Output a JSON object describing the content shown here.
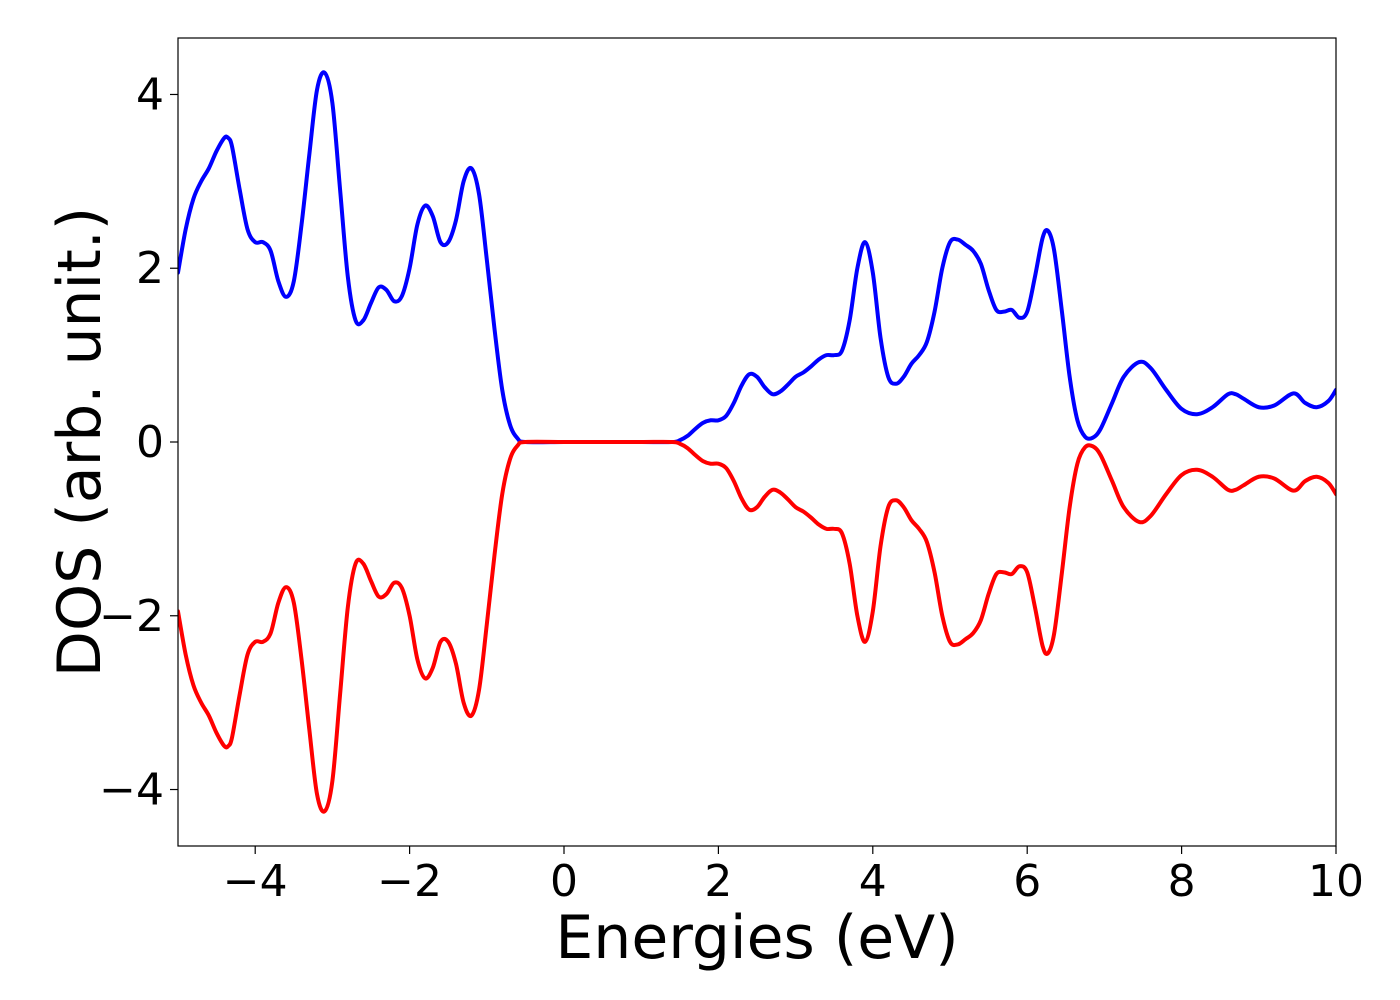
{
  "chart_data": {
    "type": "line",
    "title": "",
    "xlabel": "Energies (eV)",
    "ylabel": "DOS (arb. unit.)",
    "xlim": [
      -5,
      10
    ],
    "ylim": [
      -4.65,
      4.65
    ],
    "xticks": [
      {
        "value": -4,
        "label": "−4"
      },
      {
        "value": -2,
        "label": "−2"
      },
      {
        "value": 0,
        "label": "0"
      },
      {
        "value": 2,
        "label": "2"
      },
      {
        "value": 4,
        "label": "4"
      },
      {
        "value": 6,
        "label": "6"
      },
      {
        "value": 8,
        "label": "8"
      },
      {
        "value": 10,
        "label": "10"
      }
    ],
    "yticks": [
      {
        "value": -4,
        "label": "−4"
      },
      {
        "value": -2,
        "label": "−2"
      },
      {
        "value": 0,
        "label": "0"
      },
      {
        "value": 2,
        "label": "2"
      },
      {
        "value": 4,
        "label": "4"
      }
    ],
    "grid": false,
    "legend": "none",
    "series": [
      {
        "color": "#0000ff",
        "points": [
          [
            -5.0,
            1.95
          ],
          [
            -4.9,
            2.45
          ],
          [
            -4.8,
            2.8
          ],
          [
            -4.7,
            3.0
          ],
          [
            -4.6,
            3.15
          ],
          [
            -4.5,
            3.35
          ],
          [
            -4.4,
            3.5
          ],
          [
            -4.35,
            3.5
          ],
          [
            -4.3,
            3.4
          ],
          [
            -4.2,
            2.9
          ],
          [
            -4.1,
            2.45
          ],
          [
            -4.0,
            2.3
          ],
          [
            -3.9,
            2.3
          ],
          [
            -3.8,
            2.2
          ],
          [
            -3.7,
            1.85
          ],
          [
            -3.6,
            1.67
          ],
          [
            -3.5,
            1.85
          ],
          [
            -3.4,
            2.5
          ],
          [
            -3.3,
            3.3
          ],
          [
            -3.2,
            4.05
          ],
          [
            -3.1,
            4.25
          ],
          [
            -3.0,
            3.9
          ],
          [
            -2.9,
            2.9
          ],
          [
            -2.8,
            1.9
          ],
          [
            -2.7,
            1.4
          ],
          [
            -2.6,
            1.4
          ],
          [
            -2.5,
            1.6
          ],
          [
            -2.4,
            1.78
          ],
          [
            -2.3,
            1.75
          ],
          [
            -2.2,
            1.62
          ],
          [
            -2.1,
            1.68
          ],
          [
            -2.0,
            2.0
          ],
          [
            -1.9,
            2.5
          ],
          [
            -1.8,
            2.72
          ],
          [
            -1.7,
            2.6
          ],
          [
            -1.6,
            2.3
          ],
          [
            -1.5,
            2.3
          ],
          [
            -1.4,
            2.55
          ],
          [
            -1.3,
            3.0
          ],
          [
            -1.2,
            3.15
          ],
          [
            -1.1,
            2.85
          ],
          [
            -1.0,
            2.1
          ],
          [
            -0.9,
            1.3
          ],
          [
            -0.8,
            0.6
          ],
          [
            -0.7,
            0.2
          ],
          [
            -0.6,
            0.04
          ],
          [
            -0.5,
            0.0
          ],
          [
            0.0,
            0.0
          ],
          [
            0.5,
            0.0
          ],
          [
            1.0,
            0.0
          ],
          [
            1.4,
            0.0
          ],
          [
            1.5,
            0.02
          ],
          [
            1.6,
            0.07
          ],
          [
            1.7,
            0.15
          ],
          [
            1.8,
            0.22
          ],
          [
            1.9,
            0.25
          ],
          [
            2.0,
            0.25
          ],
          [
            2.1,
            0.3
          ],
          [
            2.2,
            0.45
          ],
          [
            2.3,
            0.65
          ],
          [
            2.4,
            0.78
          ],
          [
            2.5,
            0.75
          ],
          [
            2.6,
            0.63
          ],
          [
            2.7,
            0.55
          ],
          [
            2.8,
            0.58
          ],
          [
            2.9,
            0.66
          ],
          [
            3.0,
            0.75
          ],
          [
            3.1,
            0.8
          ],
          [
            3.2,
            0.87
          ],
          [
            3.3,
            0.95
          ],
          [
            3.4,
            1.0
          ],
          [
            3.5,
            1.0
          ],
          [
            3.6,
            1.05
          ],
          [
            3.7,
            1.4
          ],
          [
            3.8,
            2.0
          ],
          [
            3.9,
            2.3
          ],
          [
            4.0,
            1.95
          ],
          [
            4.1,
            1.2
          ],
          [
            4.2,
            0.75
          ],
          [
            4.3,
            0.67
          ],
          [
            4.4,
            0.75
          ],
          [
            4.5,
            0.9
          ],
          [
            4.6,
            1.0
          ],
          [
            4.7,
            1.15
          ],
          [
            4.8,
            1.5
          ],
          [
            4.9,
            2.0
          ],
          [
            5.0,
            2.3
          ],
          [
            5.1,
            2.33
          ],
          [
            5.2,
            2.27
          ],
          [
            5.3,
            2.2
          ],
          [
            5.4,
            2.05
          ],
          [
            5.5,
            1.75
          ],
          [
            5.6,
            1.52
          ],
          [
            5.7,
            1.5
          ],
          [
            5.8,
            1.52
          ],
          [
            5.9,
            1.43
          ],
          [
            6.0,
            1.5
          ],
          [
            6.1,
            1.9
          ],
          [
            6.2,
            2.35
          ],
          [
            6.27,
            2.43
          ],
          [
            6.35,
            2.2
          ],
          [
            6.45,
            1.5
          ],
          [
            6.55,
            0.75
          ],
          [
            6.65,
            0.25
          ],
          [
            6.75,
            0.06
          ],
          [
            6.85,
            0.05
          ],
          [
            6.95,
            0.15
          ],
          [
            7.1,
            0.45
          ],
          [
            7.25,
            0.75
          ],
          [
            7.45,
            0.92
          ],
          [
            7.6,
            0.85
          ],
          [
            7.8,
            0.6
          ],
          [
            8.0,
            0.38
          ],
          [
            8.2,
            0.32
          ],
          [
            8.4,
            0.4
          ],
          [
            8.6,
            0.55
          ],
          [
            8.7,
            0.55
          ],
          [
            8.8,
            0.5
          ],
          [
            9.0,
            0.4
          ],
          [
            9.2,
            0.42
          ],
          [
            9.45,
            0.56
          ],
          [
            9.6,
            0.45
          ],
          [
            9.75,
            0.4
          ],
          [
            9.9,
            0.47
          ],
          [
            10.0,
            0.6
          ]
        ]
      },
      {
        "color": "#ff0000",
        "points": [
          [
            -5.0,
            -1.95
          ],
          [
            -4.9,
            -2.45
          ],
          [
            -4.8,
            -2.8
          ],
          [
            -4.7,
            -3.0
          ],
          [
            -4.6,
            -3.15
          ],
          [
            -4.5,
            -3.35
          ],
          [
            -4.4,
            -3.5
          ],
          [
            -4.35,
            -3.5
          ],
          [
            -4.3,
            -3.4
          ],
          [
            -4.2,
            -2.9
          ],
          [
            -4.1,
            -2.45
          ],
          [
            -4.0,
            -2.3
          ],
          [
            -3.9,
            -2.3
          ],
          [
            -3.8,
            -2.2
          ],
          [
            -3.7,
            -1.85
          ],
          [
            -3.6,
            -1.67
          ],
          [
            -3.5,
            -1.85
          ],
          [
            -3.4,
            -2.5
          ],
          [
            -3.3,
            -3.3
          ],
          [
            -3.2,
            -4.05
          ],
          [
            -3.1,
            -4.25
          ],
          [
            -3.0,
            -3.9
          ],
          [
            -2.9,
            -2.9
          ],
          [
            -2.8,
            -1.9
          ],
          [
            -2.7,
            -1.4
          ],
          [
            -2.6,
            -1.4
          ],
          [
            -2.5,
            -1.6
          ],
          [
            -2.4,
            -1.78
          ],
          [
            -2.3,
            -1.75
          ],
          [
            -2.2,
            -1.62
          ],
          [
            -2.1,
            -1.68
          ],
          [
            -2.0,
            -2.0
          ],
          [
            -1.9,
            -2.5
          ],
          [
            -1.8,
            -2.72
          ],
          [
            -1.7,
            -2.6
          ],
          [
            -1.6,
            -2.3
          ],
          [
            -1.5,
            -2.3
          ],
          [
            -1.4,
            -2.55
          ],
          [
            -1.3,
            -3.0
          ],
          [
            -1.2,
            -3.15
          ],
          [
            -1.1,
            -2.85
          ],
          [
            -1.0,
            -2.1
          ],
          [
            -0.9,
            -1.3
          ],
          [
            -0.8,
            -0.6
          ],
          [
            -0.7,
            -0.2
          ],
          [
            -0.6,
            -0.04
          ],
          [
            -0.5,
            0.0
          ],
          [
            0.0,
            0.0
          ],
          [
            0.5,
            0.0
          ],
          [
            1.0,
            0.0
          ],
          [
            1.4,
            0.0
          ],
          [
            1.5,
            -0.02
          ],
          [
            1.6,
            -0.07
          ],
          [
            1.7,
            -0.15
          ],
          [
            1.8,
            -0.22
          ],
          [
            1.9,
            -0.25
          ],
          [
            2.0,
            -0.25
          ],
          [
            2.1,
            -0.3
          ],
          [
            2.2,
            -0.45
          ],
          [
            2.3,
            -0.65
          ],
          [
            2.4,
            -0.78
          ],
          [
            2.5,
            -0.75
          ],
          [
            2.6,
            -0.63
          ],
          [
            2.7,
            -0.55
          ],
          [
            2.8,
            -0.58
          ],
          [
            2.9,
            -0.66
          ],
          [
            3.0,
            -0.75
          ],
          [
            3.1,
            -0.8
          ],
          [
            3.2,
            -0.87
          ],
          [
            3.3,
            -0.95
          ],
          [
            3.4,
            -1.0
          ],
          [
            3.5,
            -1.0
          ],
          [
            3.6,
            -1.05
          ],
          [
            3.7,
            -1.4
          ],
          [
            3.8,
            -2.0
          ],
          [
            3.9,
            -2.3
          ],
          [
            4.0,
            -1.95
          ],
          [
            4.1,
            -1.2
          ],
          [
            4.2,
            -0.75
          ],
          [
            4.3,
            -0.67
          ],
          [
            4.4,
            -0.75
          ],
          [
            4.5,
            -0.9
          ],
          [
            4.6,
            -1.0
          ],
          [
            4.7,
            -1.15
          ],
          [
            4.8,
            -1.5
          ],
          [
            4.9,
            -2.0
          ],
          [
            5.0,
            -2.3
          ],
          [
            5.1,
            -2.33
          ],
          [
            5.2,
            -2.27
          ],
          [
            5.3,
            -2.2
          ],
          [
            5.4,
            -2.05
          ],
          [
            5.5,
            -1.75
          ],
          [
            5.6,
            -1.52
          ],
          [
            5.7,
            -1.5
          ],
          [
            5.8,
            -1.52
          ],
          [
            5.9,
            -1.43
          ],
          [
            6.0,
            -1.5
          ],
          [
            6.1,
            -1.9
          ],
          [
            6.2,
            -2.35
          ],
          [
            6.27,
            -2.43
          ],
          [
            6.35,
            -2.2
          ],
          [
            6.45,
            -1.5
          ],
          [
            6.55,
            -0.75
          ],
          [
            6.65,
            -0.25
          ],
          [
            6.75,
            -0.06
          ],
          [
            6.85,
            -0.05
          ],
          [
            6.95,
            -0.15
          ],
          [
            7.1,
            -0.45
          ],
          [
            7.25,
            -0.75
          ],
          [
            7.45,
            -0.92
          ],
          [
            7.6,
            -0.85
          ],
          [
            7.8,
            -0.6
          ],
          [
            8.0,
            -0.38
          ],
          [
            8.2,
            -0.32
          ],
          [
            8.4,
            -0.4
          ],
          [
            8.6,
            -0.55
          ],
          [
            8.7,
            -0.55
          ],
          [
            8.8,
            -0.5
          ],
          [
            9.0,
            -0.4
          ],
          [
            9.2,
            -0.42
          ],
          [
            9.45,
            -0.56
          ],
          [
            9.6,
            -0.45
          ],
          [
            9.75,
            -0.4
          ],
          [
            9.9,
            -0.47
          ],
          [
            10.0,
            -0.6
          ]
        ]
      }
    ]
  }
}
